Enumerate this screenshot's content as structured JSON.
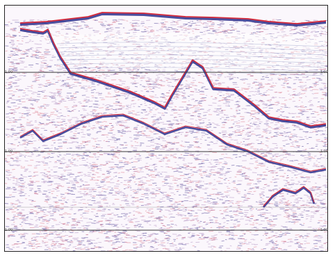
{
  "colors": {
    "background": "#fbf7fc",
    "noise_purple": "#a07ab4",
    "noise_red": "#c8324a",
    "noise_blue": "#3c4a9c",
    "reflector_red": "#d62a3a",
    "reflector_blue": "#2a2f8c",
    "timing_line": "#3a3a3a"
  },
  "timing_lines": {
    "labels": [
      "1.00",
      "1.00",
      "1.00"
    ]
  }
}
